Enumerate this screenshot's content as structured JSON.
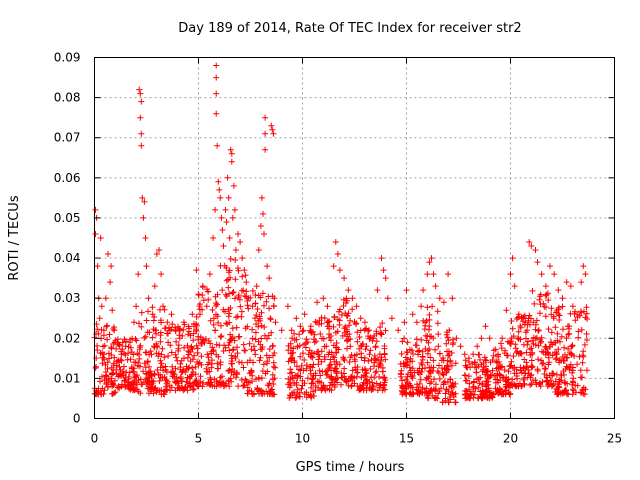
{
  "chart_data": {
    "type": "scatter",
    "title": "Day 189 of 2014, Rate Of TEC Index for receiver str2",
    "xlabel": "GPS time / hours",
    "ylabel": "ROTI / TECUs",
    "xlim": [
      0,
      25
    ],
    "ylim": [
      0,
      0.09
    ],
    "grid": true,
    "marker": "plus",
    "color": "#ff0000",
    "x_ticks": [
      0,
      5,
      10,
      15,
      20,
      25
    ],
    "x_tick_labels": [
      "0",
      "5",
      "10",
      "15",
      "20",
      "25"
    ],
    "y_ticks": [
      0,
      0.01,
      0.02,
      0.03,
      0.04,
      0.05,
      0.06,
      0.07,
      0.08,
      0.09
    ],
    "y_tick_labels": [
      "0",
      "0.01",
      "0.02",
      "0.03",
      "0.04",
      "0.05",
      "0.06",
      "0.07",
      "0.08",
      "0.09"
    ],
    "series": [
      {
        "name": "str2",
        "points": [
          [
            0.05,
            0.052
          ],
          [
            0.05,
            0.046
          ],
          [
            0.1,
            0.05
          ],
          [
            0.15,
            0.038
          ],
          [
            0.2,
            0.03
          ],
          [
            0.25,
            0.025
          ],
          [
            0.3,
            0.045
          ],
          [
            0.35,
            0.028
          ],
          [
            0.45,
            0.022
          ],
          [
            0.55,
            0.03
          ],
          [
            0.65,
            0.041
          ],
          [
            0.75,
            0.034
          ],
          [
            0.8,
            0.038
          ],
          [
            0.85,
            0.027
          ],
          [
            0.95,
            0.022
          ],
          [
            1.1,
            0.019
          ],
          [
            1.3,
            0.016
          ],
          [
            1.5,
            0.018
          ],
          [
            1.7,
            0.019
          ],
          [
            1.9,
            0.024
          ],
          [
            2.0,
            0.028
          ],
          [
            2.1,
            0.036
          ],
          [
            2.15,
            0.082
          ],
          [
            2.2,
            0.081
          ],
          [
            2.25,
            0.079
          ],
          [
            2.2,
            0.075
          ],
          [
            2.25,
            0.071
          ],
          [
            2.25,
            0.068
          ],
          [
            2.3,
            0.055
          ],
          [
            2.35,
            0.05
          ],
          [
            2.4,
            0.054
          ],
          [
            2.45,
            0.045
          ],
          [
            2.5,
            0.038
          ],
          [
            2.6,
            0.03
          ],
          [
            2.8,
            0.026
          ],
          [
            2.9,
            0.033
          ],
          [
            3.0,
            0.041
          ],
          [
            3.1,
            0.042
          ],
          [
            3.2,
            0.036
          ],
          [
            3.3,
            0.028
          ],
          [
            3.5,
            0.024
          ],
          [
            3.7,
            0.026
          ],
          [
            3.9,
            0.022
          ],
          [
            4.1,
            0.02
          ],
          [
            4.3,
            0.024
          ],
          [
            4.5,
            0.021
          ],
          [
            4.7,
            0.026
          ],
          [
            4.9,
            0.037
          ],
          [
            5.0,
            0.031
          ],
          [
            5.2,
            0.033
          ],
          [
            5.4,
            0.028
          ],
          [
            5.55,
            0.036
          ],
          [
            5.7,
            0.045
          ],
          [
            5.8,
            0.052
          ],
          [
            5.85,
            0.088
          ],
          [
            5.85,
            0.085
          ],
          [
            5.85,
            0.081
          ],
          [
            5.85,
            0.076
          ],
          [
            5.9,
            0.068
          ],
          [
            5.95,
            0.059
          ],
          [
            6.0,
            0.057
          ],
          [
            6.05,
            0.055
          ],
          [
            6.1,
            0.05
          ],
          [
            6.15,
            0.047
          ],
          [
            6.2,
            0.043
          ],
          [
            6.3,
            0.052
          ],
          [
            6.35,
            0.049
          ],
          [
            6.4,
            0.06
          ],
          [
            6.45,
            0.055
          ],
          [
            6.5,
            0.045
          ],
          [
            6.55,
            0.067
          ],
          [
            6.6,
            0.066
          ],
          [
            6.6,
            0.064
          ],
          [
            6.65,
            0.05
          ],
          [
            6.7,
            0.058
          ],
          [
            6.75,
            0.052
          ],
          [
            6.8,
            0.042
          ],
          [
            6.9,
            0.046
          ],
          [
            7.0,
            0.044
          ],
          [
            7.1,
            0.04
          ],
          [
            7.2,
            0.037
          ],
          [
            7.3,
            0.034
          ],
          [
            7.4,
            0.03
          ],
          [
            7.6,
            0.028
          ],
          [
            7.8,
            0.033
          ],
          [
            7.9,
            0.042
          ],
          [
            8.0,
            0.048
          ],
          [
            8.05,
            0.055
          ],
          [
            8.1,
            0.051
          ],
          [
            8.15,
            0.046
          ],
          [
            8.2,
            0.075
          ],
          [
            8.2,
            0.071
          ],
          [
            8.2,
            0.067
          ],
          [
            8.3,
            0.038
          ],
          [
            8.4,
            0.035
          ],
          [
            8.5,
            0.073
          ],
          [
            8.55,
            0.072
          ],
          [
            8.6,
            0.071
          ],
          [
            8.65,
            0.03
          ],
          [
            8.7,
            0.024
          ],
          [
            9.0,
            0.022
          ],
          [
            9.3,
            0.028
          ],
          [
            9.5,
            0.02
          ],
          [
            9.7,
            0.025
          ],
          [
            9.9,
            0.023
          ],
          [
            10.1,
            0.026
          ],
          [
            10.4,
            0.023
          ],
          [
            10.7,
            0.029
          ],
          [
            11.0,
            0.03
          ],
          [
            11.2,
            0.028
          ],
          [
            11.5,
            0.038
          ],
          [
            11.6,
            0.044
          ],
          [
            11.7,
            0.041
          ],
          [
            11.8,
            0.037
          ],
          [
            12.0,
            0.035
          ],
          [
            12.2,
            0.032
          ],
          [
            12.4,
            0.03
          ],
          [
            12.6,
            0.028
          ],
          [
            12.8,
            0.025
          ],
          [
            13.0,
            0.024
          ],
          [
            13.2,
            0.022
          ],
          [
            13.4,
            0.02
          ],
          [
            13.6,
            0.032
          ],
          [
            13.8,
            0.04
          ],
          [
            13.9,
            0.037
          ],
          [
            14.0,
            0.035
          ],
          [
            14.1,
            0.03
          ],
          [
            14.3,
            0.025
          ],
          [
            14.6,
            0.022
          ],
          [
            14.9,
            0.024
          ],
          [
            15.0,
            0.032
          ],
          [
            15.3,
            0.026
          ],
          [
            15.5,
            0.024
          ],
          [
            15.7,
            0.028
          ],
          [
            15.8,
            0.032
          ],
          [
            16.0,
            0.036
          ],
          [
            16.1,
            0.039
          ],
          [
            16.2,
            0.04
          ],
          [
            16.3,
            0.036
          ],
          [
            16.4,
            0.033
          ],
          [
            16.6,
            0.03
          ],
          [
            16.8,
            0.029
          ],
          [
            17.0,
            0.036
          ],
          [
            17.2,
            0.03
          ],
          [
            17.4,
            0.02
          ],
          [
            17.6,
            0.018
          ],
          [
            17.8,
            0.016
          ],
          [
            18.0,
            0.015
          ],
          [
            18.2,
            0.016
          ],
          [
            18.4,
            0.018
          ],
          [
            18.6,
            0.02
          ],
          [
            18.8,
            0.023
          ],
          [
            19.0,
            0.02
          ],
          [
            19.2,
            0.017
          ],
          [
            19.4,
            0.016
          ],
          [
            19.6,
            0.02
          ],
          [
            19.8,
            0.027
          ],
          [
            20.0,
            0.036
          ],
          [
            20.1,
            0.04
          ],
          [
            20.2,
            0.033
          ],
          [
            20.4,
            0.026
          ],
          [
            20.6,
            0.025
          ],
          [
            20.8,
            0.022
          ],
          [
            20.9,
            0.044
          ],
          [
            21.0,
            0.043
          ],
          [
            21.2,
            0.042
          ],
          [
            21.3,
            0.039
          ],
          [
            21.5,
            0.036
          ],
          [
            21.7,
            0.033
          ],
          [
            21.9,
            0.038
          ],
          [
            22.1,
            0.036
          ],
          [
            22.3,
            0.032
          ],
          [
            22.5,
            0.03
          ],
          [
            22.7,
            0.034
          ],
          [
            22.9,
            0.033
          ],
          [
            23.0,
            0.028
          ],
          [
            23.2,
            0.026
          ],
          [
            23.4,
            0.034
          ],
          [
            23.5,
            0.038
          ],
          [
            23.6,
            0.036
          ]
        ],
        "bands": [
          [
            0.0,
            1.0,
            0.006,
            0.024
          ],
          [
            1.0,
            2.1,
            0.007,
            0.02
          ],
          [
            2.1,
            3.4,
            0.006,
            0.028
          ],
          [
            3.4,
            4.9,
            0.007,
            0.024
          ],
          [
            4.9,
            6.0,
            0.008,
            0.034
          ],
          [
            6.0,
            7.3,
            0.008,
            0.04
          ],
          [
            7.3,
            8.7,
            0.006,
            0.032
          ],
          [
            9.3,
            10.6,
            0.005,
            0.022
          ],
          [
            10.6,
            11.6,
            0.007,
            0.026
          ],
          [
            11.6,
            12.6,
            0.008,
            0.03
          ],
          [
            12.6,
            14.0,
            0.007,
            0.024
          ],
          [
            14.7,
            15.8,
            0.006,
            0.02
          ],
          [
            15.8,
            16.6,
            0.005,
            0.028
          ],
          [
            16.6,
            17.4,
            0.004,
            0.022
          ],
          [
            17.8,
            19.2,
            0.005,
            0.016
          ],
          [
            19.2,
            20.0,
            0.006,
            0.02
          ],
          [
            20.0,
            21.0,
            0.008,
            0.026
          ],
          [
            21.0,
            22.0,
            0.008,
            0.032
          ],
          [
            22.0,
            23.7,
            0.006,
            0.028
          ]
        ]
      }
    ]
  }
}
